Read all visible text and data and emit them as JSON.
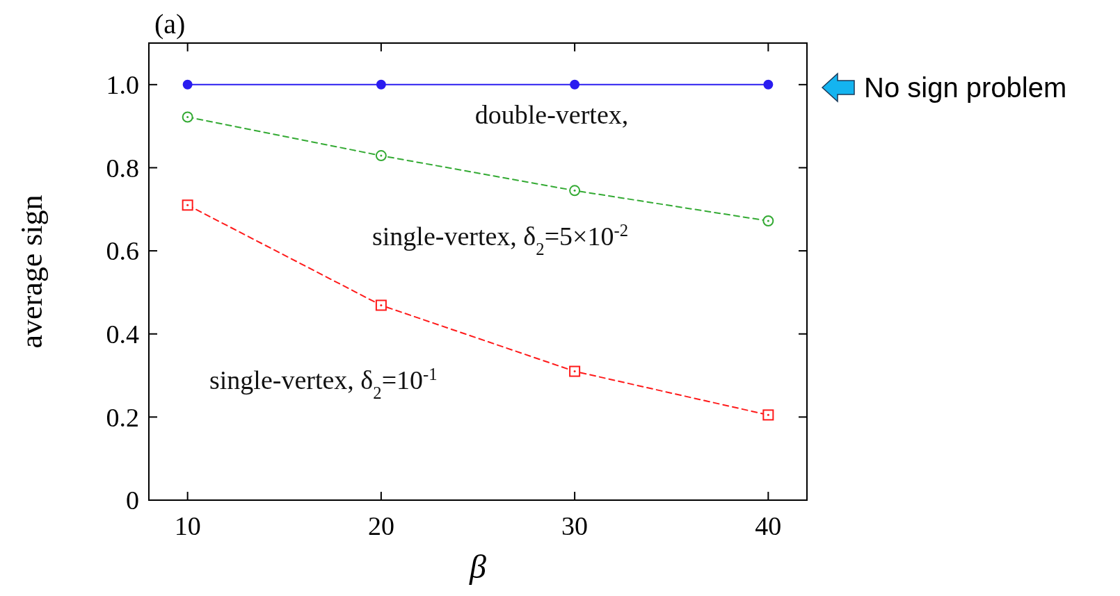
{
  "chart_data": {
    "type": "line",
    "xlabel": "β",
    "ylabel": "average sign",
    "x": [
      10,
      20,
      30,
      40
    ],
    "series": [
      {
        "name": "double-vertex,",
        "color": "#2a1cf0",
        "values": [
          1.0,
          1.0,
          1.0,
          1.0
        ],
        "marker": "circle",
        "line_style": "solid"
      },
      {
        "name": "single-vertex, δ$_{2}$=5×10$^{-2}$",
        "color": "#33aa33",
        "values": [
          0.922,
          0.829,
          0.745,
          0.672
        ],
        "marker": "circle",
        "line_style": "dashed"
      },
      {
        "name": "single-vertex, δ$_{2}$=10$^{-1}$",
        "color": "#ff1a1a",
        "values": [
          0.71,
          0.469,
          0.31,
          0.205
        ],
        "marker": "square",
        "line_style": "dashed"
      }
    ],
    "xlim": [
      8,
      42
    ],
    "xticks": [
      10,
      20,
      30,
      40
    ],
    "ylim": [
      0,
      1.1
    ],
    "yticks": [
      0,
      {
        "value": 0.2,
        "label": "0.2"
      },
      {
        "value": 0.4,
        "label": "0.4"
      },
      {
        "value": 0.6,
        "label": "0.6"
      },
      {
        "value": 0.8,
        "label": "0.8"
      },
      {
        "value": 1,
        "label": "1.0"
      }
    ],
    "grid": false,
    "annotations": [
      "(a)",
      "No sign problem"
    ]
  }
}
